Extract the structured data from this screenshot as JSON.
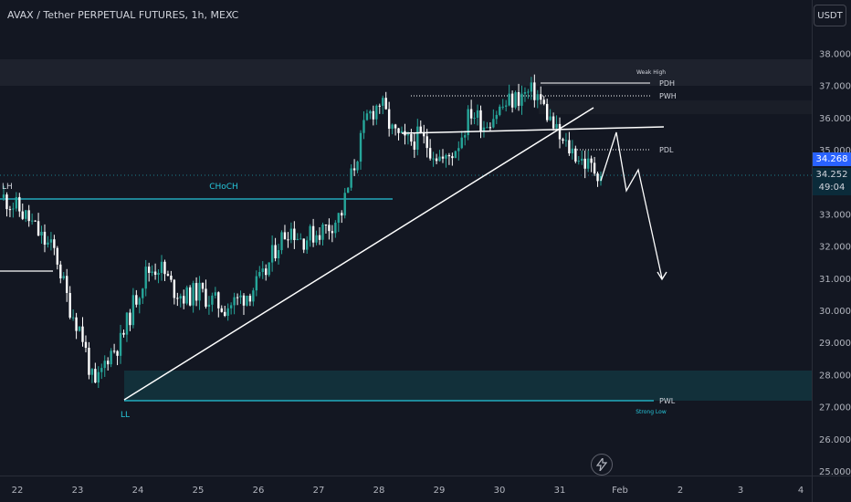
{
  "header": {
    "title": "AVAX / Tether PERPETUAL FUTURES, 1h, MEXC",
    "currency": "USDT"
  },
  "colors": {
    "background": "#131722",
    "candle_up": "#26a69a",
    "candle_down": "#ffffff",
    "zone_line": "#26c6da",
    "zone_fill": "#12303a",
    "drawing": "#ffffff",
    "axis_text": "#b2b5be",
    "last_price_badge": "#2962ff"
  },
  "price_axis": {
    "labels": [
      "38.000",
      "37.000",
      "36.000",
      "35.000",
      "33.000",
      "32.000",
      "31.000",
      "30.000",
      "29.000",
      "28.000",
      "27.000",
      "26.000",
      "25.000"
    ],
    "last_price": "34.268",
    "mark_price": "34.252",
    "countdown": "49:04"
  },
  "time_axis": {
    "labels": [
      "22",
      "23",
      "24",
      "25",
      "26",
      "27",
      "28",
      "29",
      "30",
      "31",
      "Feb",
      "2",
      "3",
      "4"
    ]
  },
  "annotations": {
    "lh": "LH",
    "choch": "CHoCH",
    "ll": "LL",
    "weak_high": "Weak High",
    "pdh": "PDH",
    "pwh": "PWH",
    "pdl": "PDL",
    "pwl": "PWL",
    "strong_low": "Strong Low"
  },
  "chart_data": {
    "type": "candlestick",
    "ylim": [
      24.95,
      38.9
    ],
    "grid": false,
    "y_ticks": [
      38,
      37,
      36,
      35,
      33,
      32,
      31,
      30,
      29,
      28,
      27,
      26,
      25
    ],
    "x_ticks": [
      "22",
      "23",
      "24",
      "25",
      "26",
      "27",
      "28",
      "29",
      "30",
      "31",
      "Feb",
      "2",
      "3",
      "4"
    ],
    "levels": [
      {
        "label": "PDH",
        "value": 37.12
      },
      {
        "label": "PWH",
        "value": 36.75
      },
      {
        "label": "PDL",
        "value": 35.0
      },
      {
        "label": "PWL",
        "value": 27.2
      },
      {
        "label": "CHoCH",
        "value": 33.5
      }
    ],
    "close_path": [
      {
        "date": "22",
        "value": 33.5
      },
      {
        "value": 33.2
      },
      {
        "value": 32.8
      },
      {
        "value": 32.2
      },
      {
        "value": 31.8
      },
      {
        "date": "23",
        "value": 30.2
      },
      {
        "value": 29.3
      },
      {
        "value": 27.5
      },
      {
        "value": 28.6
      },
      {
        "value": 29.0
      },
      {
        "date": "24",
        "value": 30.2
      },
      {
        "value": 31.2
      },
      {
        "value": 31.4
      },
      {
        "value": 30.7
      },
      {
        "value": 30.4
      },
      {
        "date": "25",
        "value": 30.6
      },
      {
        "value": 30.3
      },
      {
        "value": 30.1
      },
      {
        "value": 30.3
      },
      {
        "value": 30.6
      },
      {
        "date": "26",
        "value": 31.0
      },
      {
        "value": 32.0
      },
      {
        "value": 32.6
      },
      {
        "value": 32.2
      },
      {
        "value": 32.4
      },
      {
        "date": "27",
        "value": 32.6
      },
      {
        "value": 33.0
      },
      {
        "value": 34.5
      },
      {
        "value": 36.0
      },
      {
        "value": 36.5
      },
      {
        "date": "28",
        "value": 35.5
      },
      {
        "value": 35.2
      },
      {
        "value": 35.4
      },
      {
        "value": 35.0
      },
      {
        "value": 34.6
      },
      {
        "date": "29",
        "value": 35.2
      },
      {
        "value": 36.2
      },
      {
        "value": 35.8
      },
      {
        "value": 36.2
      },
      {
        "value": 36.5
      },
      {
        "date": "30",
        "value": 36.7
      },
      {
        "value": 36.8
      },
      {
        "value": 36.0
      },
      {
        "value": 35.2
      },
      {
        "value": 34.9
      },
      {
        "date": "31",
        "value": 34.5
      },
      {
        "value": 34.27
      }
    ],
    "last_price": 34.268,
    "projection": [
      35.0,
      35.6,
      33.8,
      34.5,
      31.0
    ]
  }
}
